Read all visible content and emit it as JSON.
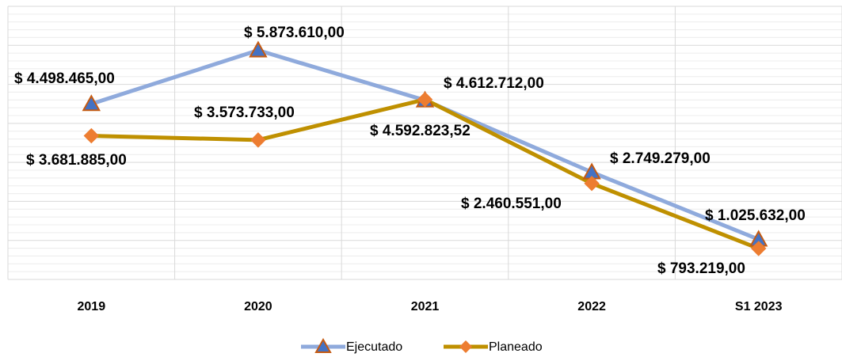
{
  "chart_data": {
    "type": "line",
    "categories": [
      "2019",
      "2020",
      "2021",
      "2022",
      "S1 2023"
    ],
    "series": [
      {
        "name": "Ejecutado",
        "color": "#8faadc",
        "marker_color": "#4472c4",
        "marker_edge": "#c55a11",
        "marker": "triangle",
        "values": [
          4498465,
          5873610,
          4592823.52,
          2749279,
          1025632
        ],
        "value_labels": [
          "$ 4.498.465,00",
          "$ 5.873.610,00",
          "$ 4.592.823,52",
          "$ 2.749.279,00",
          "$ 1.025.632,00"
        ]
      },
      {
        "name": "Planeado",
        "color": "#bf9000",
        "marker_color": "#ed7d31",
        "marker_edge": "#ed7d31",
        "marker": "diamond",
        "values": [
          3681885,
          3573733,
          4612712,
          2460551,
          793219
        ],
        "value_labels": [
          "$ 3.681.885,00",
          "$ 3.573.733,00",
          "$ 4.612.712,00",
          "$ 2.460.551,00",
          "$ 793.219,00"
        ]
      }
    ],
    "ylim": [
      0,
      7000000
    ],
    "yticks": [
      0,
      1000000,
      2000000,
      3000000,
      4000000,
      5000000,
      6000000,
      7000000
    ],
    "grid": true,
    "legend": "bottom"
  }
}
